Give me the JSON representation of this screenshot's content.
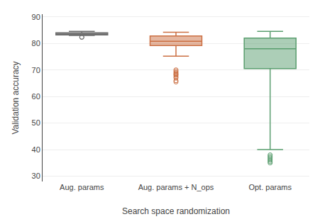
{
  "chart_data": {
    "type": "box",
    "categories": [
      "Aug. params",
      "Aug. params + N_ops",
      "Opt. params"
    ],
    "values": [
      {
        "median": 83.5,
        "q1": 83.2,
        "q3": 84.0,
        "whislo": 83.0,
        "whishi": 84.5,
        "fliers": [
          82.3,
          82.4
        ]
      },
      {
        "median": 80.8,
        "q1": 79.2,
        "q3": 82.8,
        "whislo": 75.2,
        "whishi": 84.2,
        "fliers": [
          65.5,
          66.0,
          67.0,
          67.5,
          68.0,
          68.3,
          68.6,
          69.0,
          69.5,
          70.0
        ]
      },
      {
        "median": 78.0,
        "q1": 70.5,
        "q3": 82.0,
        "whislo": 40.0,
        "whishi": 84.5,
        "fliers": [
          35.0,
          35.5,
          36.0,
          36.5,
          37.0,
          37.5,
          38.0
        ]
      }
    ],
    "colors": [
      "#6d6d6d",
      "#cc7044",
      "#5a9e6f"
    ],
    "marker": "circle-open",
    "xlabel": "Search space randomization",
    "ylabel": "Validation accuracy",
    "ylim": [
      28,
      91
    ],
    "yticks": [
      30,
      40,
      50,
      60,
      70,
      80,
      90
    ],
    "grid": true
  }
}
